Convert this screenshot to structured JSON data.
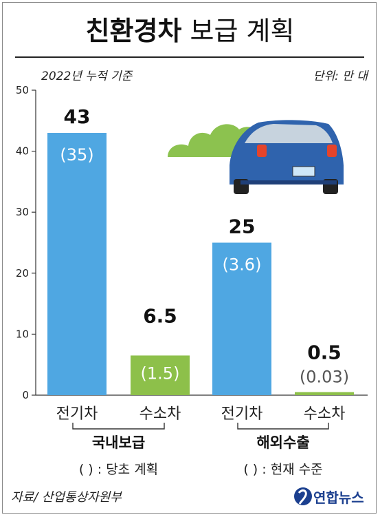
{
  "title_bold": "친환경차",
  "title_rest": "보급 계획",
  "basis_note": "2022년 누적 기준",
  "unit_note": "단위: 만 대",
  "source": "자료/ 산업통상자원부",
  "logo": "연합뉴스",
  "colors": {
    "electric": "#4fa7e2",
    "hydrogen": "#8dc04a",
    "bold_label": "#111111",
    "hydro_paren": "#555555"
  },
  "chart_data": {
    "type": "bar",
    "ylim": [
      0,
      50
    ],
    "yticks": [
      "0",
      "10",
      "20",
      "30",
      "40",
      "50"
    ],
    "groups": [
      {
        "name": "국내보급",
        "note": "( ) : 당초 계획",
        "bars": [
          {
            "category": "전기차",
            "value": 43,
            "value_label": "43",
            "paren_label": "(35)",
            "color": "#4fa7e2"
          },
          {
            "category": "수소차",
            "value": 6.5,
            "value_label": "6.5",
            "paren_label": "(1.5)",
            "color": "#8dc04a"
          }
        ]
      },
      {
        "name": "해외수출",
        "note": "( ) : 현재 수준",
        "bars": [
          {
            "category": "전기차",
            "value": 25,
            "value_label": "25",
            "paren_label": "(3.6)",
            "color": "#4fa7e2"
          },
          {
            "category": "수소차",
            "value": 0.5,
            "value_label": "0.5",
            "paren_label": "(0.03)",
            "color": "#8dc04a"
          }
        ]
      }
    ]
  }
}
